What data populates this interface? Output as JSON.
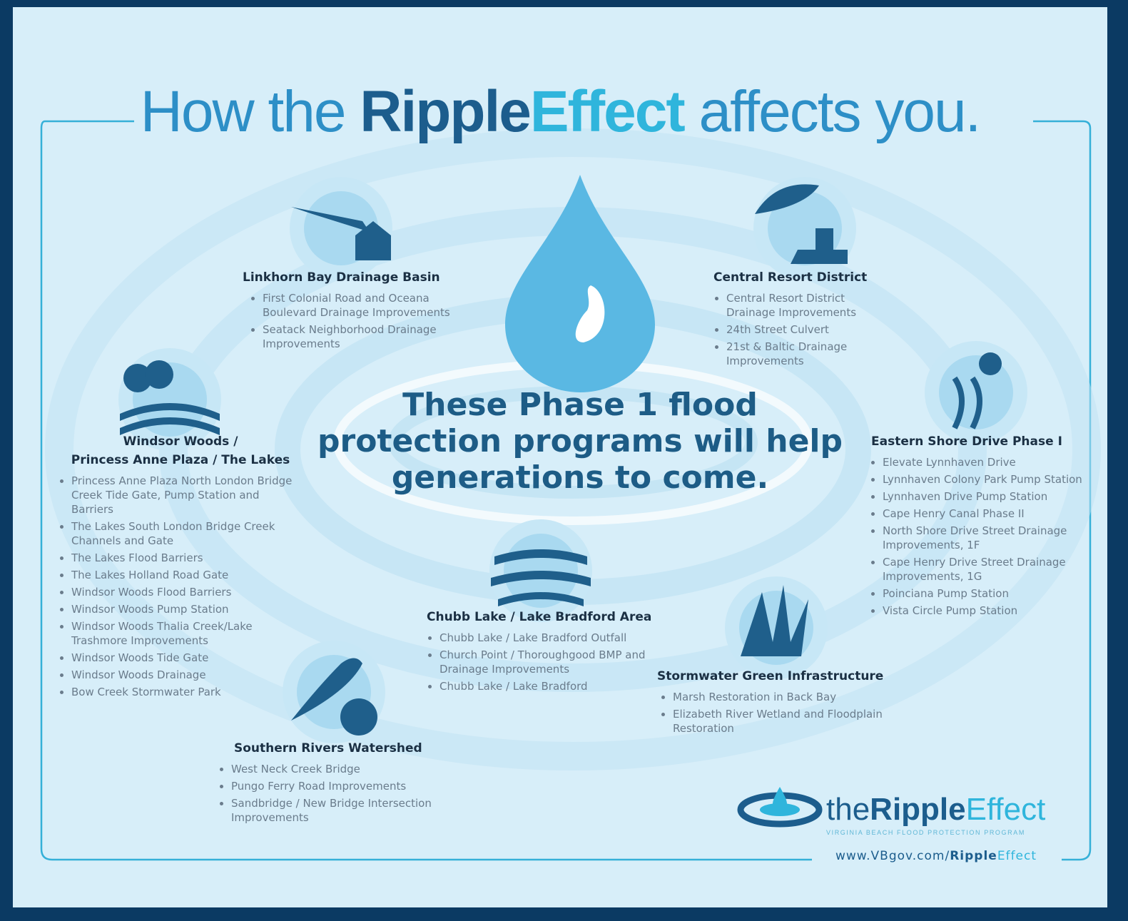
{
  "header": {
    "title": [
      "How the",
      "Ripple",
      "Effect",
      "affects you."
    ]
  },
  "center": {
    "lines": [
      "These Phase 1 flood",
      "protection programs will help",
      "generations to come."
    ]
  },
  "sections": [
    {
      "title": [
        "Linkhorn Bay Drainage Basin"
      ],
      "items": [
        "First Colonial Road and Oceana Boulevard Drainage Improvements",
        "Seatack Neighborhood Drainage Improvements"
      ]
    },
    {
      "title": [
        "Central Resort District"
      ],
      "items": [
        "Central Resort District Drainage Improvements",
        "24th Street Culvert",
        "21st & Baltic Drainage Improvements"
      ]
    },
    {
      "title": [
        "Windsor Woods /",
        "Princess Anne Plaza / The Lakes"
      ],
      "items": [
        "Princess Anne Plaza North London Bridge Creek Tide Gate, Pump Station and Barriers",
        "The Lakes South London Bridge Creek Channels and Gate",
        "The Lakes Flood Barriers",
        "The Lakes Holland Road Gate",
        "Windsor Woods Flood Barriers",
        "Windsor Woods Pump Station",
        "Windsor Woods Thalia Creek/Lake Trashmore Improvements",
        "Windsor Woods Tide Gate",
        "Windsor Woods Drainage",
        "Bow Creek Stormwater Park"
      ]
    },
    {
      "title": [
        "Eastern Shore Drive Phase I"
      ],
      "items": [
        "Elevate Lynnhaven Drive",
        "Lynnhaven Colony Park Pump Station",
        "Lynnhaven Drive Pump Station",
        "Cape Henry Canal Phase II",
        "North Shore Drive Street Drainage Improvements, 1F",
        "Cape Henry Drive Street Drainage Improvements, 1G",
        "Poinciana Pump Station",
        "Vista Circle Pump Station"
      ]
    },
    {
      "title": [
        "Chubb Lake / Lake Bradford Area"
      ],
      "items": [
        "Chubb Lake / Lake Bradford Outfall",
        "Church Point / Thoroughgood BMP and Drainage Improvements",
        "Chubb Lake / Lake Bradford"
      ]
    },
    {
      "title": [
        "Stormwater Green Infrastructure"
      ],
      "items": [
        "Marsh Restoration in Back Bay",
        "Elizabeth River Wetland and Floodplain Restoration"
      ]
    },
    {
      "title": [
        "Southern Rivers Watershed"
      ],
      "items": [
        "West Neck Creek Bridge",
        "Pungo Ferry Road Improvements",
        "Sandbridge / New Bridge Intersection Improvements"
      ]
    }
  ],
  "logo": {
    "name": [
      "the",
      "Ripple",
      "Effect"
    ],
    "tagline": "VIRGINIA BEACH FLOOD PROTECTION PROGRAM",
    "url": [
      "www.VBgov.com/",
      "Ripple",
      "Effect"
    ]
  }
}
